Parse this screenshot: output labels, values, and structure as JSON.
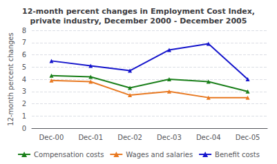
{
  "chart_data": {
    "type": "line",
    "title": "12-month percent changes in Employment Cost Index,\nprivate industry, December 2000 - December 2005",
    "ylabel": "12-month percent changes",
    "categories": [
      "Dec-00",
      "Dec-01",
      "Dec-02",
      "Dec-03",
      "Dec-04",
      "Dec-05"
    ],
    "series": [
      {
        "name": "Compensation costs",
        "color": "#1a7f1a",
        "values": [
          4.3,
          4.2,
          3.3,
          4.0,
          3.8,
          3.0
        ]
      },
      {
        "name": "Wages and salaries",
        "color": "#e87820",
        "values": [
          3.9,
          3.8,
          2.7,
          3.0,
          2.5,
          2.5
        ]
      },
      {
        "name": "Benefit costs",
        "color": "#1515cc",
        "values": [
          5.5,
          5.1,
          4.7,
          6.4,
          6.9,
          4.0
        ]
      }
    ],
    "marker": "triangle",
    "ylim": [
      0,
      8
    ],
    "yticks": [
      0,
      1,
      2,
      3,
      4,
      5,
      6,
      7,
      8
    ],
    "grid": true,
    "legend": "bottom"
  }
}
